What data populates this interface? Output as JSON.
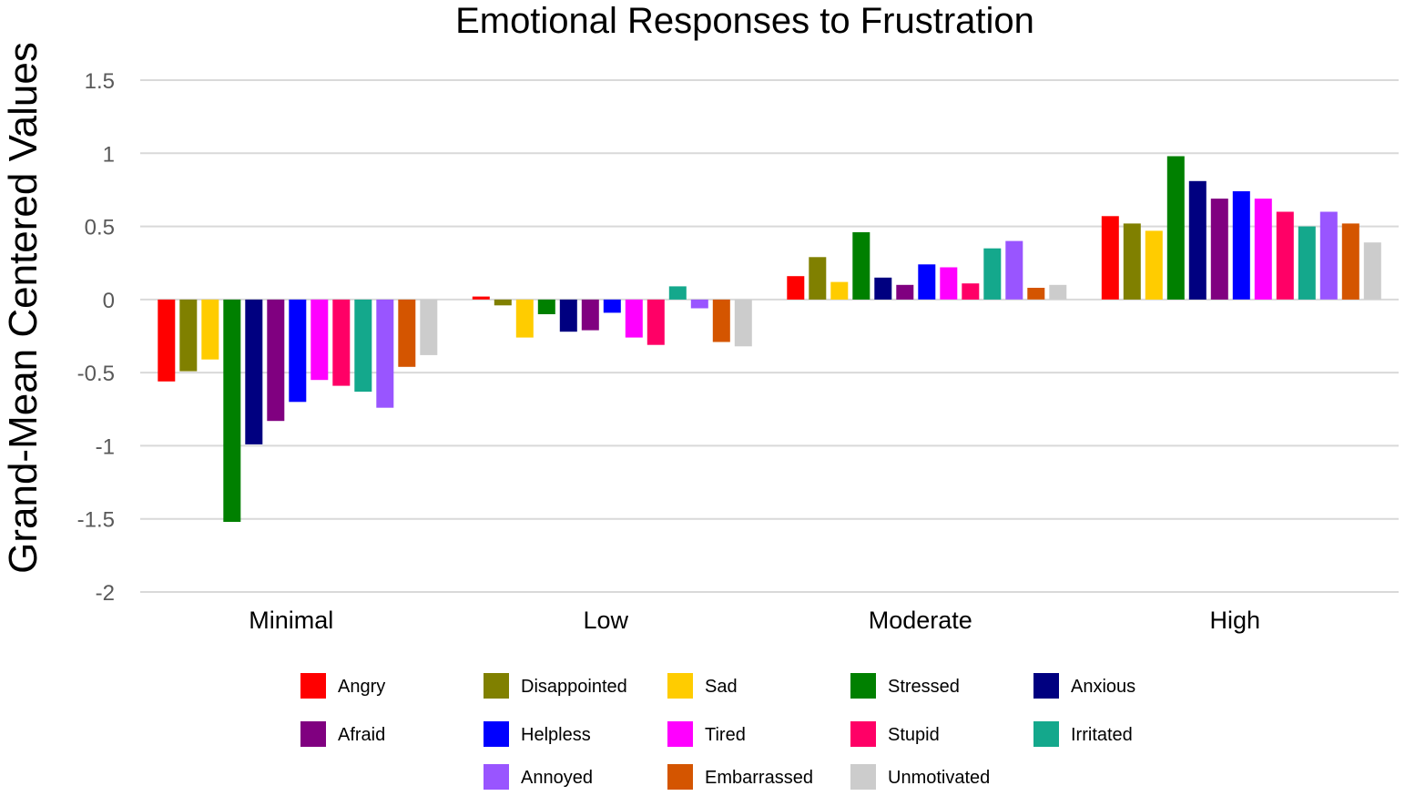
{
  "chart_data": {
    "type": "bar",
    "title": "Emotional Responses to Frustration",
    "xlabel": "",
    "ylabel": "Grand-Mean Centered Values",
    "ylim": [
      -2,
      1.5
    ],
    "yticks": [
      1.5,
      1,
      0.5,
      0,
      -0.5,
      -1,
      -1.5,
      -2
    ],
    "ytick_labels": [
      "1.5",
      "1",
      "0.5",
      "0",
      "-0.5",
      "-1",
      "-1.5",
      "-2"
    ],
    "grid": true,
    "legend_position": "bottom",
    "categories": [
      "Minimal",
      "Low",
      "Moderate",
      "High"
    ],
    "series": [
      {
        "name": "Angry",
        "color": "#FF0000",
        "values": [
          -0.56,
          0.02,
          0.16,
          0.57
        ]
      },
      {
        "name": "Disappointed",
        "color": "#808000",
        "values": [
          -0.49,
          -0.04,
          0.29,
          0.52
        ]
      },
      {
        "name": "Sad",
        "color": "#FFCC00",
        "values": [
          -0.41,
          -0.26,
          0.12,
          0.47
        ]
      },
      {
        "name": "Stressed",
        "color": "#008000",
        "values": [
          -1.52,
          -0.1,
          0.46,
          0.98
        ]
      },
      {
        "name": "Anxious",
        "color": "#000080",
        "values": [
          -0.99,
          -0.22,
          0.15,
          0.81
        ]
      },
      {
        "name": "Afraid",
        "color": "#800080",
        "values": [
          -0.83,
          -0.21,
          0.1,
          0.69
        ]
      },
      {
        "name": "Helpless",
        "color": "#0000FF",
        "values": [
          -0.7,
          -0.09,
          0.24,
          0.74
        ]
      },
      {
        "name": "Tired",
        "color": "#FF00FF",
        "values": [
          -0.55,
          -0.26,
          0.22,
          0.69
        ]
      },
      {
        "name": "Stupid",
        "color": "#FF0066",
        "values": [
          -0.59,
          -0.31,
          0.11,
          0.6
        ]
      },
      {
        "name": "Irritated",
        "color": "#14A88C",
        "values": [
          -0.63,
          0.09,
          0.35,
          0.5
        ]
      },
      {
        "name": "Annoyed",
        "color": "#9955FF",
        "values": [
          -0.74,
          -0.06,
          0.4,
          0.6
        ]
      },
      {
        "name": "Embarrassed",
        "color": "#D45500",
        "values": [
          -0.46,
          -0.29,
          0.08,
          0.52
        ]
      },
      {
        "name": "Unmotivated",
        "color": "#CCCCCC",
        "values": [
          -0.38,
          -0.32,
          0.1,
          0.39
        ]
      }
    ]
  }
}
